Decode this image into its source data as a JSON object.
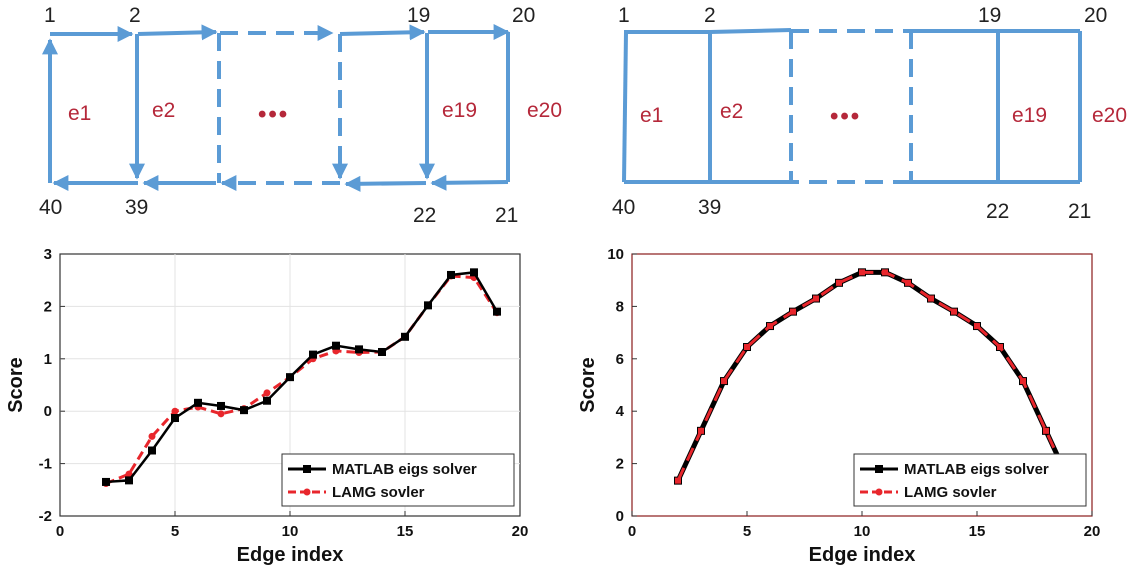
{
  "diagrams": [
    {
      "nodes": {
        "top_left": "1",
        "top_second": "2",
        "top_second_last": "19",
        "top_right": "20",
        "bottom_left": "40",
        "bottom_second": "39",
        "bottom_second_last": "22",
        "bottom_right": "21"
      },
      "edges": [
        "e1",
        "e2",
        "e19",
        "e20"
      ],
      "ellipsis": "•••",
      "directed": true
    },
    {
      "nodes": {
        "top_left": "1",
        "top_second": "2",
        "top_second_last": "19",
        "top_right": "20",
        "bottom_left": "40",
        "bottom_second": "39",
        "bottom_second_last": "22",
        "bottom_right": "21"
      },
      "edges": [
        "e1",
        "e2",
        "e19",
        "e20"
      ],
      "ellipsis": "•••",
      "directed": false
    }
  ],
  "colors": {
    "diagram_edge": "#5b9bd5",
    "edge_label": "#b5283a",
    "series_matlab": "#000000",
    "series_lamg": "#e8262c"
  },
  "chart_data": [
    {
      "type": "line",
      "xlabel": "Edge index",
      "ylabel": "Score",
      "xlim": [
        0,
        20
      ],
      "ylim": [
        -2,
        3
      ],
      "xticks": [
        "0",
        "5",
        "10",
        "15",
        "20"
      ],
      "yticks": [
        "-2",
        "-1",
        "0",
        "1",
        "2",
        "3"
      ],
      "grid": true,
      "legend_position": "bottom-right",
      "series": [
        {
          "name": "MATLAB eigs solver",
          "x": [
            2,
            3,
            4,
            5,
            6,
            7,
            8,
            9,
            10,
            11,
            12,
            13,
            14,
            15,
            16,
            17,
            18,
            19
          ],
          "y": [
            -1.35,
            -1.32,
            -0.75,
            -0.13,
            0.16,
            0.1,
            0.02,
            0.2,
            0.65,
            1.08,
            1.25,
            1.18,
            1.13,
            1.42,
            2.02,
            2.6,
            2.65,
            1.9
          ]
        },
        {
          "name": "LAMG sovler",
          "x": [
            2,
            3,
            4,
            5,
            6,
            7,
            8,
            9,
            10,
            11,
            12,
            13,
            14,
            15,
            16,
            17,
            18,
            19
          ],
          "y": [
            -1.38,
            -1.2,
            -0.48,
            0.0,
            0.08,
            -0.05,
            0.05,
            0.35,
            0.65,
            1.0,
            1.15,
            1.12,
            1.13,
            1.42,
            2.02,
            2.58,
            2.55,
            1.88
          ]
        }
      ]
    },
    {
      "type": "line",
      "xlabel": "Edge index",
      "ylabel": "Score",
      "xlim": [
        0,
        20
      ],
      "ylim": [
        0,
        10
      ],
      "xticks": [
        "0",
        "5",
        "10",
        "15",
        "20"
      ],
      "yticks": [
        "0",
        "2",
        "4",
        "6",
        "8",
        "10"
      ],
      "grid": false,
      "legend_position": "bottom-right",
      "series": [
        {
          "name": "MATLAB eigs solver",
          "x": [
            2,
            3,
            4,
            5,
            6,
            7,
            8,
            9,
            10,
            11,
            12,
            13,
            14,
            15,
            16,
            17,
            18,
            19
          ],
          "y": [
            1.35,
            3.25,
            5.15,
            6.45,
            7.25,
            7.8,
            8.3,
            8.9,
            9.3,
            9.3,
            8.9,
            8.3,
            7.8,
            7.25,
            6.45,
            5.15,
            3.25,
            1.35
          ]
        },
        {
          "name": "LAMG sovler",
          "x": [
            2,
            3,
            4,
            5,
            6,
            7,
            8,
            9,
            10,
            11,
            12,
            13,
            14,
            15,
            16,
            17,
            18,
            19
          ],
          "y": [
            1.35,
            3.25,
            5.15,
            6.45,
            7.25,
            7.8,
            8.3,
            8.9,
            9.3,
            9.3,
            8.9,
            8.3,
            7.8,
            7.25,
            6.45,
            5.15,
            3.25,
            1.35
          ]
        }
      ]
    }
  ]
}
